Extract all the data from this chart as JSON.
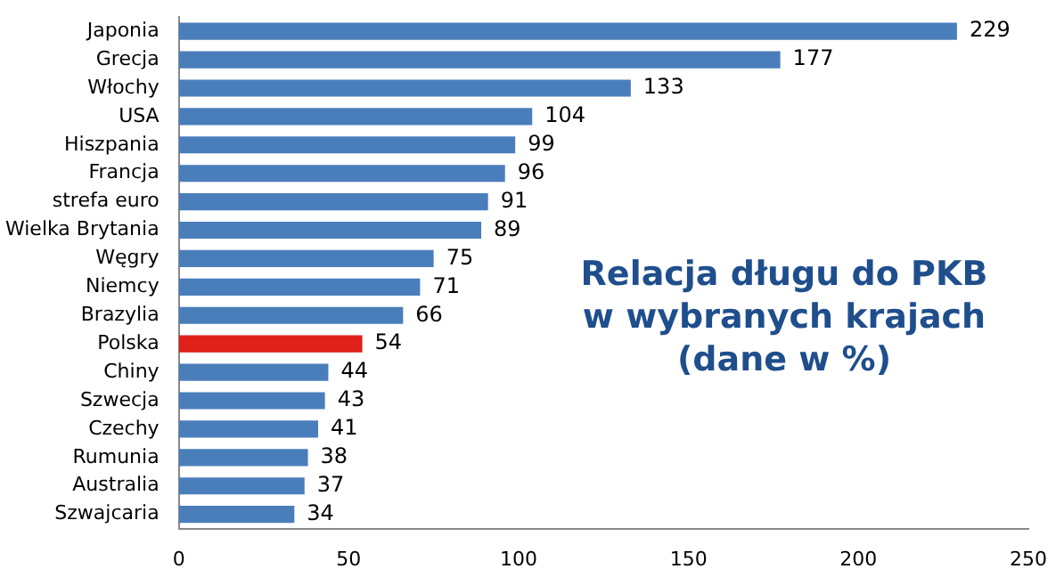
{
  "chart_data": {
    "type": "bar",
    "orientation": "horizontal",
    "title": "Relacja długu do PKB w wybranych krajach (dane w %)",
    "categories": [
      "Japonia",
      "Grecja",
      "Włochy",
      "USA",
      "Hiszpania",
      "Francja",
      "strefa euro",
      "Wielka Brytania",
      "Węgry",
      "Niemcy",
      "Brazylia",
      "Polska",
      "Chiny",
      "Szwecja",
      "Czechy",
      "Rumunia",
      "Australia",
      "Szwajcaria"
    ],
    "values": [
      229,
      177,
      133,
      104,
      99,
      96,
      91,
      89,
      75,
      71,
      66,
      54,
      44,
      43,
      41,
      38,
      37,
      34
    ],
    "colors": [
      "#4a7ebb",
      "#4a7ebb",
      "#4a7ebb",
      "#4a7ebb",
      "#4a7ebb",
      "#4a7ebb",
      "#4a7ebb",
      "#4a7ebb",
      "#4a7ebb",
      "#4a7ebb",
      "#4a7ebb",
      "#e0201b",
      "#4a7ebb",
      "#4a7ebb",
      "#4a7ebb",
      "#4a7ebb",
      "#4a7ebb",
      "#4a7ebb"
    ],
    "xlim": [
      0,
      250
    ],
    "xticks": [
      0,
      50,
      100,
      150,
      200,
      250
    ],
    "grid": false,
    "legend": false,
    "data_labels": true
  }
}
